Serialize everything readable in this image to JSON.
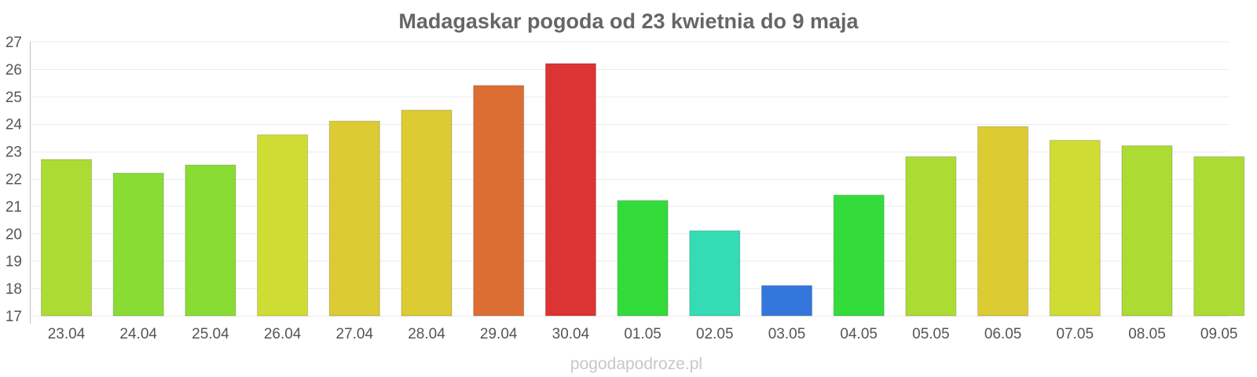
{
  "chart_data": {
    "type": "bar",
    "title": "Madagaskar pogoda od 23 kwietnia do 9 maja",
    "xlabel": "",
    "ylabel": "",
    "ylim": [
      17,
      27
    ],
    "yticks": [
      17,
      18,
      19,
      20,
      21,
      22,
      23,
      24,
      25,
      26,
      27
    ],
    "grid": true,
    "legend": "none",
    "categories": [
      "23.04",
      "24.04",
      "25.04",
      "26.04",
      "27.04",
      "28.04",
      "29.04",
      "30.04",
      "01.05",
      "02.05",
      "03.05",
      "04.05",
      "05.05",
      "06.05",
      "07.05",
      "08.05",
      "09.05"
    ],
    "values": [
      22.7,
      22.2,
      22.5,
      23.6,
      24.1,
      24.5,
      25.4,
      26.2,
      21.2,
      20.1,
      18.1,
      21.4,
      22.8,
      23.9,
      23.4,
      23.2,
      22.8
    ],
    "colors": [
      "#acdc33",
      "#89dc33",
      "#89dc33",
      "#cfdc33",
      "#dccb33",
      "#dccb33",
      "#dc6e33",
      "#dc3333",
      "#33dc3a",
      "#33dcb4",
      "#3377dc",
      "#33dc3a",
      "#acdc33",
      "#dccb33",
      "#cfdc33",
      "#acdc33",
      "#acdc33"
    ]
  },
  "watermark": "pogodapodroze.pl"
}
